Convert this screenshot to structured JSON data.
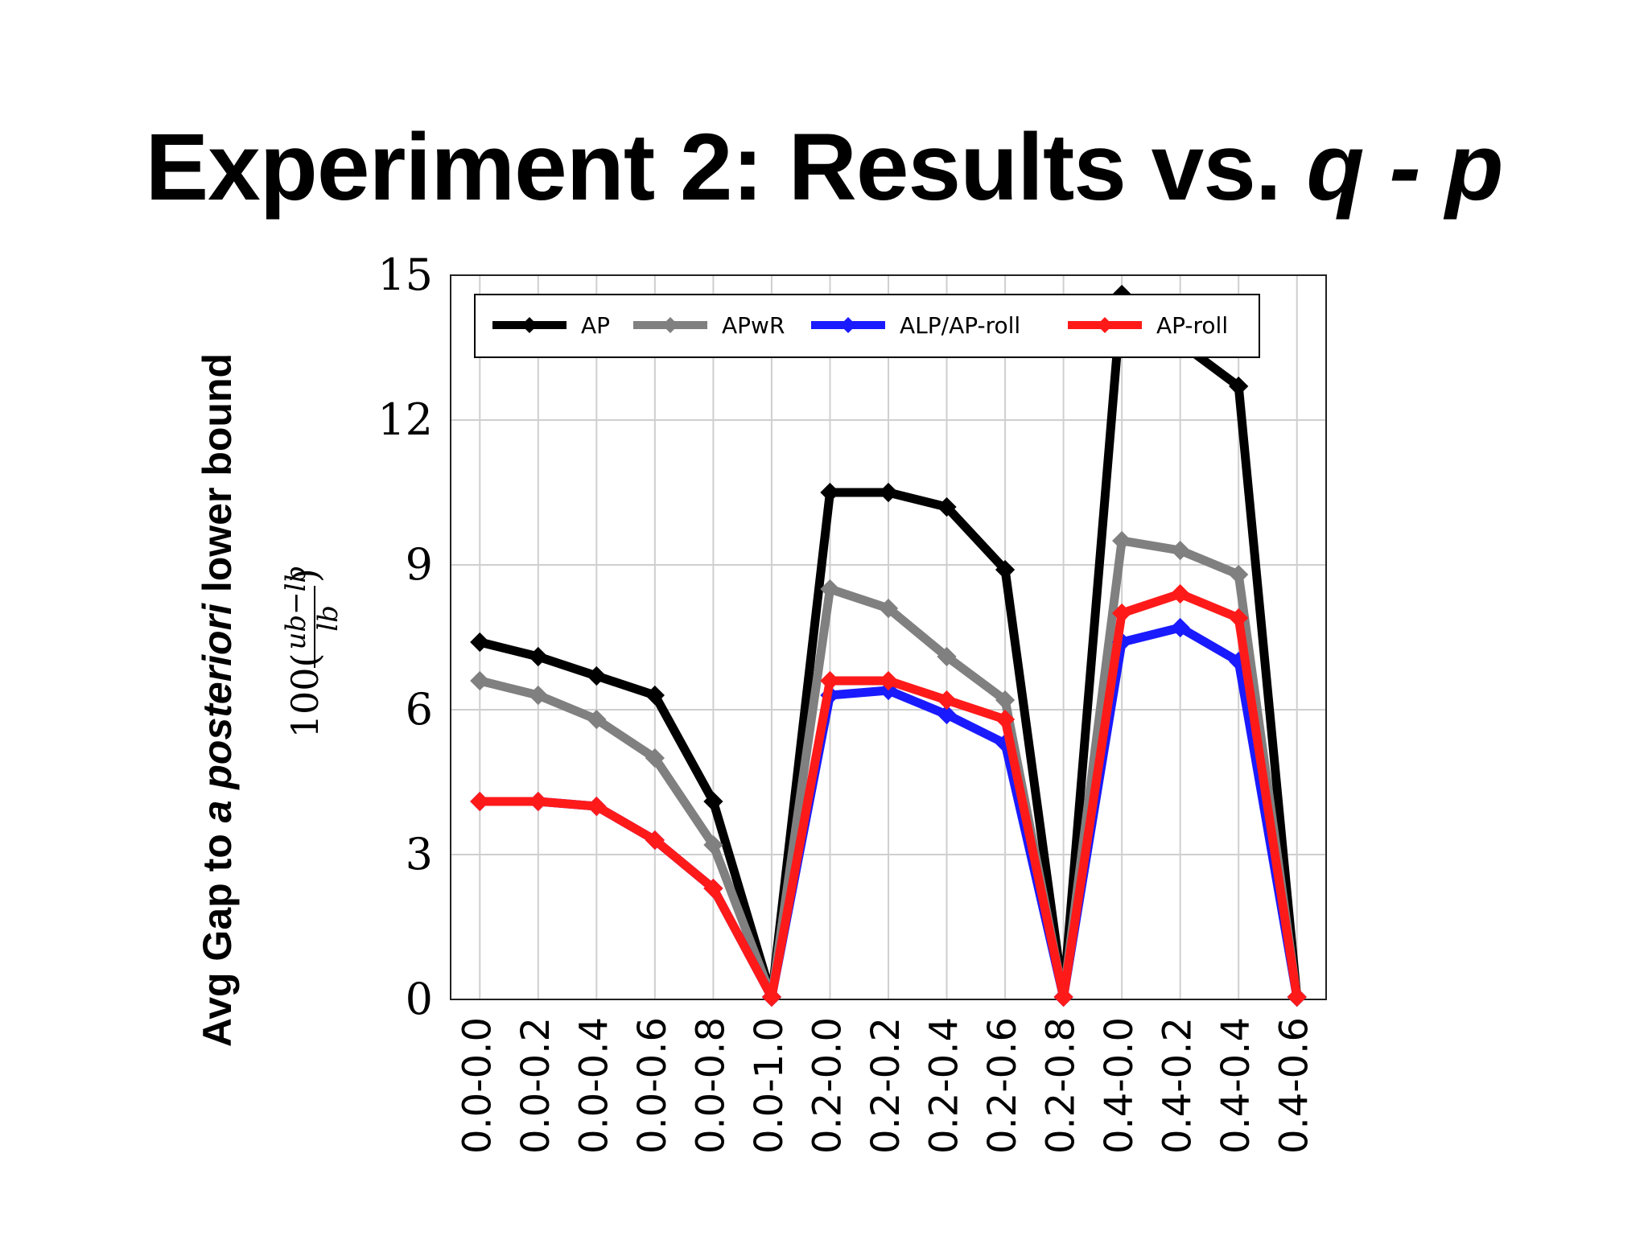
{
  "slide": {
    "title_main": "Experiment 2: Results vs. ",
    "title_italic": "q - p",
    "ylabel_prefix": "Avg Gap to ",
    "ylabel_italic": "a posteriori",
    "ylabel_suffix": " lower bound"
  },
  "chart_data": {
    "type": "line",
    "ylabel": "100(ub−lb / lb)",
    "ylabel_parts": {
      "prefix": "100(",
      "numerator": "ub−lb",
      "denominator": "lb",
      "suffix": ")"
    },
    "ylim": [
      0,
      15
    ],
    "yticks": [
      0,
      3,
      6,
      9,
      12,
      15
    ],
    "grid": true,
    "legend_position": "top",
    "categories": [
      "0.0-0.0",
      "0.0-0.2",
      "0.0-0.4",
      "0.0-0.6",
      "0.0-0.8",
      "0.0-1.0",
      "0.2-0.0",
      "0.2-0.2",
      "0.2-0.4",
      "0.2-0.6",
      "0.2-0.8",
      "0.4-0.0",
      "0.4-0.2",
      "0.4-0.4",
      "0.4-0.6"
    ],
    "series": [
      {
        "name": "AP",
        "color": "#000000",
        "values": [
          7.4,
          7.1,
          6.7,
          6.3,
          4.1,
          0.05,
          10.5,
          10.5,
          10.2,
          8.9,
          0.05,
          14.6,
          13.6,
          12.7,
          0.05
        ]
      },
      {
        "name": "APwR",
        "color": "#808080",
        "values": [
          6.6,
          6.3,
          5.8,
          5.0,
          3.2,
          0.05,
          8.5,
          8.1,
          7.1,
          6.2,
          0.05,
          9.5,
          9.3,
          8.8,
          0.05
        ]
      },
      {
        "name": "ALP/AP-roll",
        "color": "#1a1aff",
        "values": [
          4.1,
          4.1,
          4.0,
          3.3,
          2.3,
          0.05,
          6.3,
          6.4,
          5.9,
          5.3,
          0.05,
          7.4,
          7.7,
          7.0,
          0.05
        ]
      },
      {
        "name": "AP-roll",
        "color": "#ff1a1a",
        "values": [
          4.1,
          4.1,
          4.0,
          3.3,
          2.3,
          0.05,
          6.6,
          6.6,
          6.2,
          5.8,
          0.05,
          8.0,
          8.4,
          7.9,
          0.05
        ]
      }
    ]
  }
}
